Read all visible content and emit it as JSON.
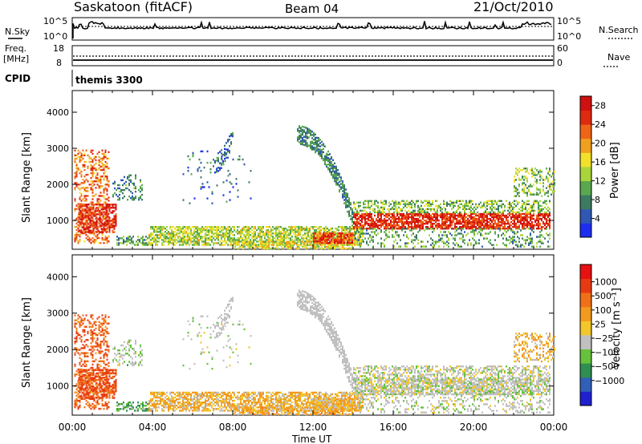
{
  "header": {
    "title": "Saskatoon (fitACF)",
    "beam": "Beam 04",
    "date": "21/Oct/2010"
  },
  "noise_panel": {
    "left_label": "N.Sky",
    "right_label": "N.Search",
    "left_ticks": [
      "10^5",
      "10^0"
    ],
    "right_ticks": [
      "10^5",
      "10^0"
    ]
  },
  "freq_panel": {
    "left_label_line1": "Freq.",
    "left_label_line2": "[MHz]",
    "right_label": "Nave",
    "left_ticks": [
      "18",
      "8"
    ],
    "right_ticks": [
      "60",
      "0"
    ]
  },
  "cpid_panel": {
    "label": "CPID",
    "value": "themis 3300"
  },
  "colors": {
    "power_scale": [
      "#1e2ef0",
      "#2f58b4",
      "#3d7a62",
      "#5aa84e",
      "#a9d43a",
      "#f2e02a",
      "#f0a01e",
      "#f06418",
      "#e02a10",
      "#d01010"
    ],
    "velocity_scale": [
      "#2020d0",
      "#3060b8",
      "#2f8f50",
      "#66c23a",
      "#c0c0c0",
      "#f3c62a",
      "#f29a1e",
      "#f07018",
      "#e83a12",
      "#e81010"
    ]
  },
  "chart_data": [
    {
      "type": "heatmap",
      "name": "power",
      "ylabel": "Slant Range [km]",
      "yticks": [
        "1000",
        "2000",
        "3000",
        "4000"
      ],
      "ylim": [
        200,
        4600
      ],
      "xlim_hours": [
        0,
        24
      ],
      "colorbar_label": "Power [dB]",
      "colorbar_ticks": [
        "4",
        "8",
        "12",
        "16",
        "20",
        "24",
        "28"
      ],
      "colorbar_range": [
        0,
        30
      ]
    },
    {
      "type": "heatmap",
      "name": "velocity",
      "ylabel": "Slant Range [km]",
      "yticks": [
        "1000",
        "2000",
        "3000",
        "4000"
      ],
      "ylim": [
        200,
        4600
      ],
      "xlim_hours": [
        0,
        24
      ],
      "colorbar_label": "Velocity [m s⁻¹]",
      "colorbar_ticks": [
        "1000",
        "500",
        "100",
        "25",
        "−25",
        "−100",
        "−500",
        "−1000"
      ]
    }
  ],
  "x_axis": {
    "label": "Time UT",
    "ticks": [
      "00:00",
      "04:00",
      "08:00",
      "12:00",
      "16:00",
      "20:00",
      "00:00"
    ]
  }
}
